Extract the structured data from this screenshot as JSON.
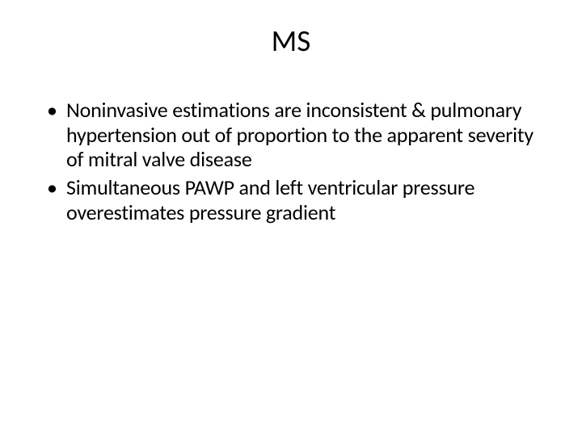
{
  "slide": {
    "title": "MS",
    "background_color": "#ffffff",
    "title_fontsize": 37,
    "title_color": "#000000",
    "body_fontsize": 26,
    "body_color": "#000000",
    "bullets": [
      {
        "text": "Noninvasive estimations are inconsistent & pulmonary hypertension out of proportion to the apparent severity of mitral valve disease"
      },
      {
        "text": "Simultaneous PAWP and left ventricular pressure overestimates pressure gradient"
      }
    ]
  }
}
